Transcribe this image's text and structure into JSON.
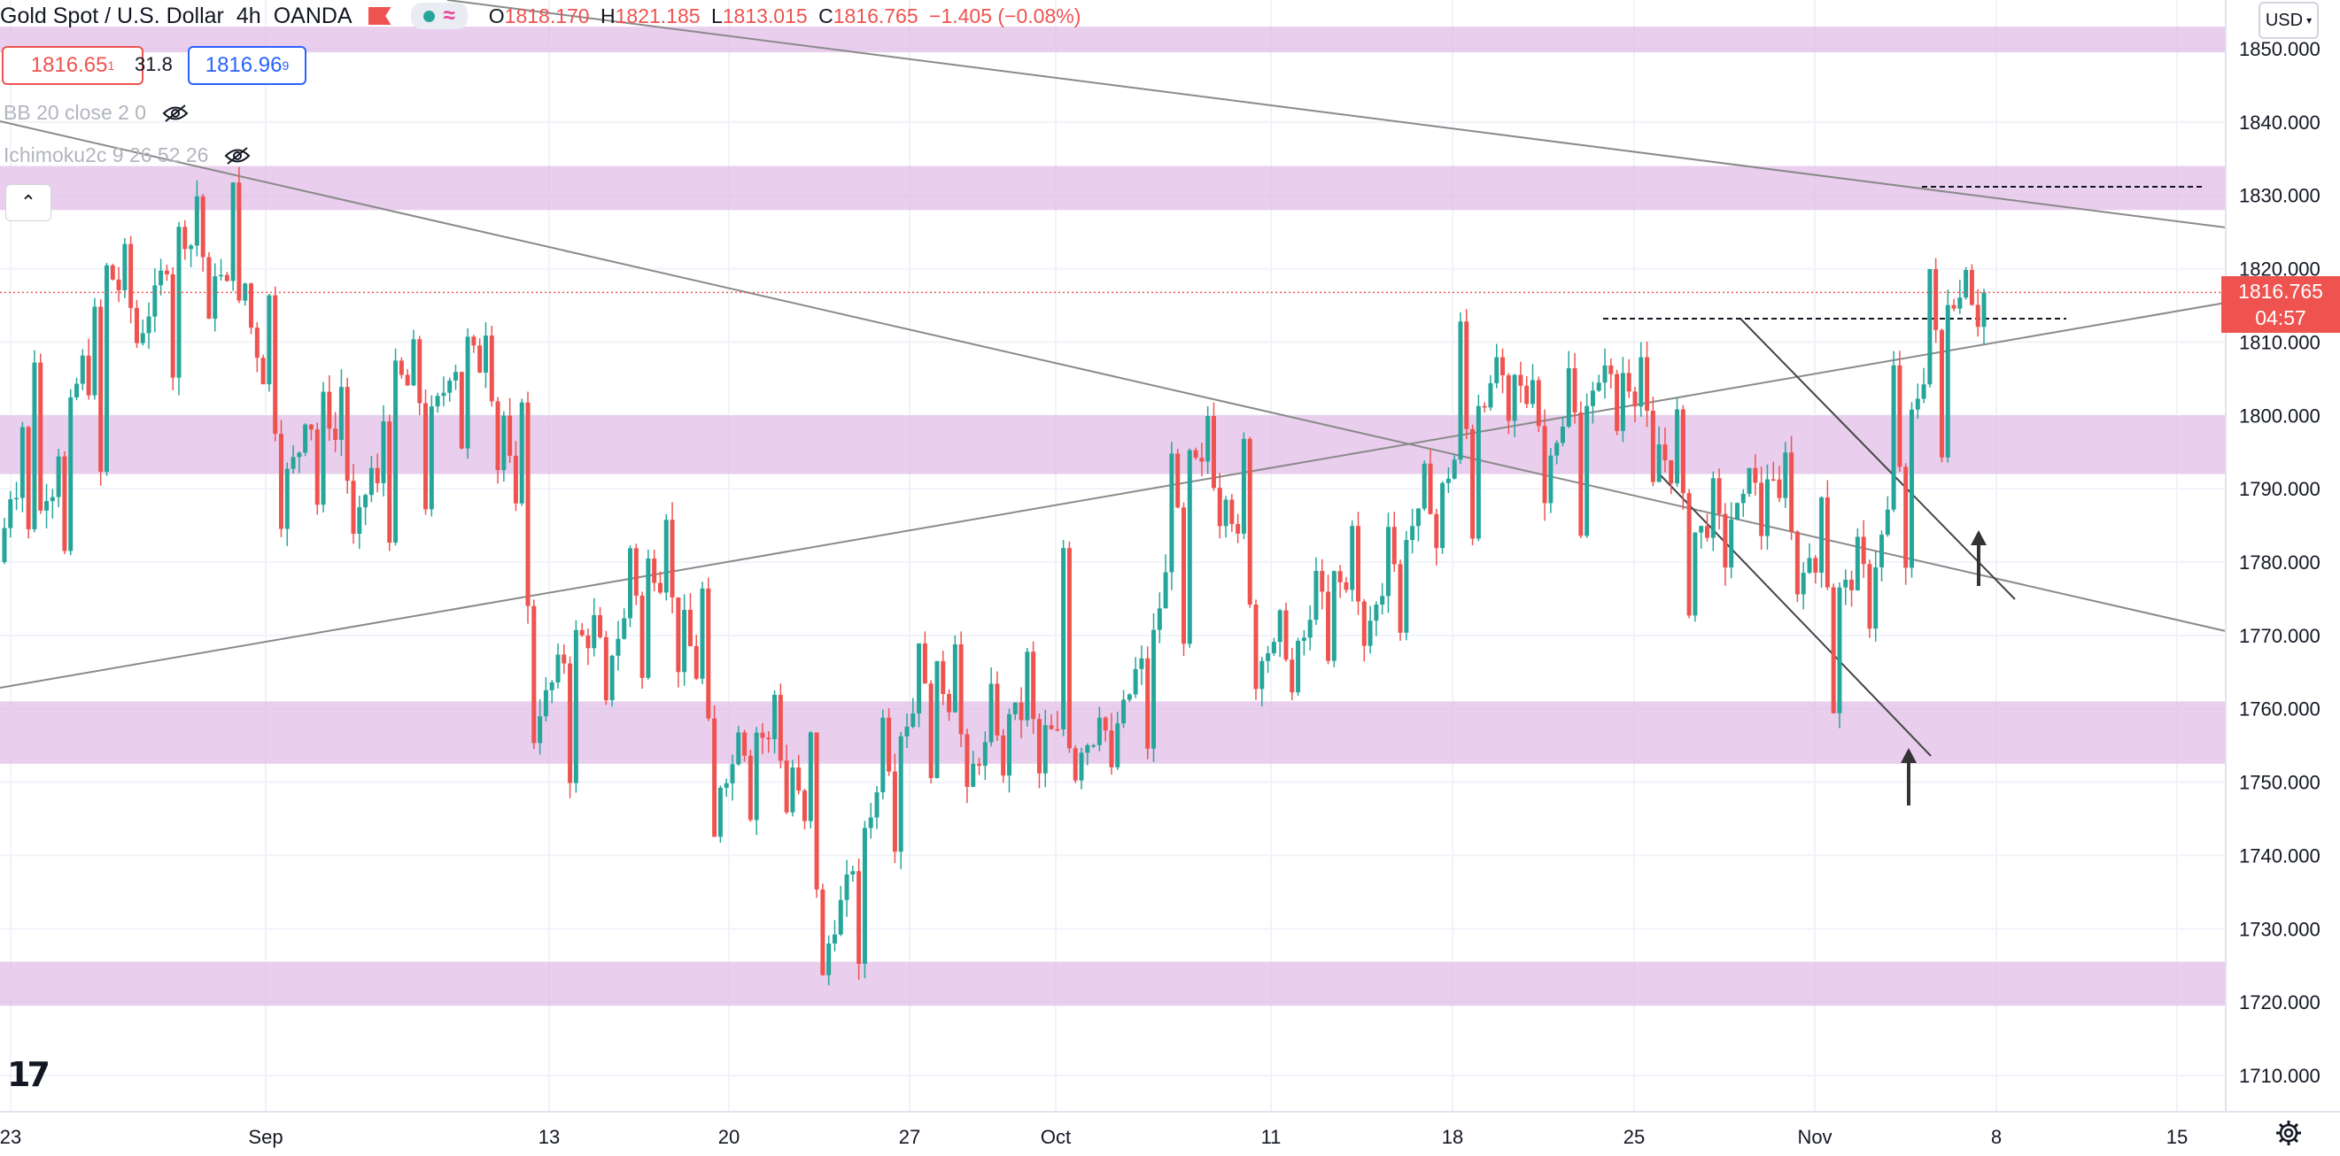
{
  "header": {
    "symbol_title": "Gold Spot / U.S. Dollar",
    "interval": "4h",
    "source": "OANDA",
    "ohlc": {
      "o_label": "O",
      "o_value": "1818.170",
      "h_label": "H",
      "h_value": "1821.185",
      "l_label": "L",
      "l_value": "1813.015",
      "c_label": "C",
      "c_value": "1816.765",
      "change": "−1.405 (−0.08%)"
    }
  },
  "quote": {
    "sell_price": "1816.65",
    "sell_sup": "1",
    "spread": "31.8",
    "buy_price": "1816.96",
    "buy_sup": "9"
  },
  "indicators": [
    {
      "label": "BB 20 close 2 0"
    },
    {
      "label": "Ichimoku2c 9 26 52 26"
    }
  ],
  "currency_selector": "USD",
  "last_price": {
    "value": "1816.765",
    "countdown": "04:57"
  },
  "colors": {
    "up": "#26a69a",
    "down": "#ef5350",
    "zone": "#e1bee7",
    "trendline": "#8a8a8a",
    "accent": "#2962ff"
  },
  "icons": [
    "flag-icon",
    "market-status-dot-icon",
    "wave-icon",
    "eye-hidden-icon",
    "chevron-up-icon",
    "tradingview-logo-icon",
    "gear-icon"
  ],
  "chart_data": {
    "type": "candlestick",
    "title": "Gold Spot / U.S. Dollar",
    "interval": "4h",
    "y_axis": {
      "ticks": [
        "1850.000",
        "1840.000",
        "1830.000",
        "1820.000",
        "1810.000",
        "1800.000",
        "1790.000",
        "1780.000",
        "1770.000",
        "1760.000",
        "1750.000",
        "1740.000",
        "1730.000",
        "1720.000",
        "1710.000"
      ],
      "range": [
        1705,
        1853
      ]
    },
    "x_axis": {
      "ticks": [
        "23",
        "Sep",
        "13",
        "20",
        "27",
        "Oct",
        "11",
        "18",
        "25",
        "Nov",
        "8",
        "15"
      ]
    },
    "support_resistance_zones": [
      [
        1853,
        1849.5
      ],
      [
        1834,
        1828
      ],
      [
        1800,
        1792
      ],
      [
        1761,
        1752.5
      ],
      [
        1725.5,
        1719.5
      ]
    ],
    "current_price": 1816.765,
    "price_path": [
      [
        1780,
        1790,
        1808,
        1784
      ],
      [
        1784,
        1790,
        1801,
        1781
      ],
      [
        1801,
        1804,
        1820,
        1792
      ],
      [
        1820,
        1822,
        1812,
        1810
      ],
      [
        1812,
        1819,
        1825,
        1806
      ],
      [
        1825,
        1830,
        1820,
        1812
      ],
      [
        1820,
        1833,
        1812,
        1818
      ],
      [
        1812,
        1816,
        1792,
        1786
      ],
      [
        1792,
        1800,
        1802,
        1788
      ],
      [
        1802,
        1804,
        1786,
        1783
      ],
      [
        1786,
        1790,
        1806,
        1784
      ],
      [
        1806,
        1809,
        1800,
        1788
      ],
      [
        1800,
        1806,
        1810,
        1796
      ],
      [
        1810,
        1812,
        1800,
        1793
      ],
      [
        1800,
        1803,
        1760,
        1756
      ],
      [
        1760,
        1766,
        1770,
        1751
      ],
      [
        1770,
        1772,
        1768,
        1760
      ],
      [
        1768,
        1782,
        1780,
        1764
      ],
      [
        1780,
        1787,
        1772,
        1766
      ],
      [
        1772,
        1776,
        1750,
        1742
      ],
      [
        1750,
        1758,
        1757,
        1746
      ],
      [
        1757,
        1762,
        1752,
        1746
      ],
      [
        1752,
        1756,
        1728,
        1723
      ],
      [
        1728,
        1736,
        1744,
        1724
      ],
      [
        1744,
        1760,
        1757,
        1742
      ],
      [
        1757,
        1770,
        1765,
        1752
      ],
      [
        1765,
        1770,
        1752,
        1748
      ],
      [
        1752,
        1762,
        1760,
        1750
      ],
      [
        1760,
        1767,
        1757,
        1751
      ],
      [
        1757,
        1782,
        1755,
        1751
      ],
      [
        1755,
        1760,
        1758,
        1751
      ],
      [
        1758,
        1765,
        1770,
        1755
      ],
      [
        1770,
        1796,
        1794,
        1768
      ],
      [
        1794,
        1800,
        1790,
        1786
      ],
      [
        1790,
        1796,
        1768,
        1763
      ],
      [
        1768,
        1772,
        1768,
        1762
      ],
      [
        1768,
        1780,
        1778,
        1766
      ],
      [
        1778,
        1786,
        1772,
        1768
      ],
      [
        1772,
        1786,
        1784,
        1770
      ],
      [
        1784,
        1792,
        1790,
        1782
      ],
      [
        1790,
        1812,
        1802,
        1784
      ],
      [
        1802,
        1808,
        1805,
        1798
      ],
      [
        1805,
        1806,
        1796,
        1788
      ],
      [
        1796,
        1806,
        1802,
        1785
      ],
      [
        1802,
        1808,
        1806,
        1798
      ],
      [
        1806,
        1808,
        1796,
        1790
      ],
      [
        1796,
        1800,
        1784,
        1774
      ],
      [
        1784,
        1790,
        1786,
        1780
      ],
      [
        1786,
        1794,
        1792,
        1784
      ],
      [
        1792,
        1796,
        1780,
        1776
      ],
      [
        1780,
        1790,
        1776,
        1760
      ],
      [
        1776,
        1782,
        1780,
        1772
      ],
      [
        1780,
        1806,
        1800,
        1778
      ],
      [
        1800,
        1820,
        1816,
        1794
      ],
      [
        1816,
        1821,
        1816,
        1813
      ]
    ]
  }
}
